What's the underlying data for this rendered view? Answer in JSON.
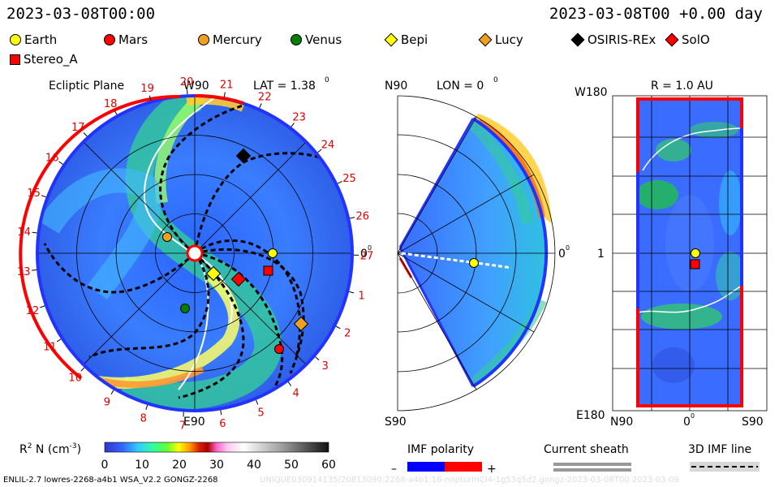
{
  "header": {
    "left": "2023-03-08T00:00",
    "right": "2023-03-08T00 +0.00 day"
  },
  "legend": [
    {
      "label": "Earth",
      "shape": "circle",
      "color": "#ffff00"
    },
    {
      "label": "Mars",
      "shape": "circle",
      "color": "#ff0000"
    },
    {
      "label": "Mercury",
      "shape": "circle",
      "color": "#f0a020"
    },
    {
      "label": "Venus",
      "shape": "circle",
      "color": "#008000"
    },
    {
      "label": "Bepi",
      "shape": "diamond",
      "color": "#ffff00"
    },
    {
      "label": "Lucy",
      "shape": "diamond",
      "color": "#f0a020"
    },
    {
      "label": "OSIRIS-REx",
      "shape": "diamond",
      "color": "#000000"
    },
    {
      "label": "SolO",
      "shape": "diamond",
      "color": "#ff0000"
    },
    {
      "label": "Stereo_A",
      "shape": "square",
      "color": "#ff0000"
    }
  ],
  "ecliptic": {
    "title": "Ecliptic Plane",
    "lat_label": "LAT = 1.38",
    "lat_deg": "0",
    "top_label": "W90",
    "bottom_label": "E90",
    "right_label": "0",
    "right_deg": "0",
    "carrington_ticks": [
      "1",
      "2",
      "3",
      "4",
      "5",
      "6",
      "7",
      "8",
      "9",
      "10",
      "11",
      "12",
      "13",
      "14",
      "15",
      "16",
      "17",
      "18",
      "19",
      "20",
      "21",
      "22",
      "23",
      "24",
      "25",
      "26",
      "27"
    ]
  },
  "meridional": {
    "top_label": "N90",
    "bottom_label": "S90",
    "lon_label": "LON = 0",
    "lon_deg": "0",
    "right_label": "0",
    "right_deg": "0"
  },
  "radial": {
    "title": "R = 1.0 AU",
    "top_left": "W180",
    "bottom_left": "E180",
    "mid_left": "1",
    "bottom_ticks": [
      "N90",
      "0",
      "S90"
    ],
    "mid_deg": "0"
  },
  "colorbar": {
    "label": "R",
    "label_sup": "2",
    "label_rest": " N (cm",
    "label_sup2": "-3",
    "label_end": ")",
    "ticks": [
      "0",
      "10",
      "20",
      "30",
      "40",
      "50",
      "60"
    ],
    "min": 0,
    "max": 60
  },
  "imf": {
    "title": "IMF polarity",
    "minus": "–",
    "plus": "+"
  },
  "sheath": {
    "title": "Current sheath"
  },
  "imfline": {
    "title": "3D IMF line"
  },
  "footer": "ENLIL-2.7 lowres-2268-a4b1 WSA_V2.2 GONGZ-2268",
  "footer_ghost": "UNIQUE030914135/20813090:2268-a4b1:16-nopturmCl4-1g53q5d2.gongz-2023-03-08T00   2023-03-09",
  "colors": {
    "background": "#ffffff",
    "tick_red": "#e00000",
    "imf_neg": "#0000ff",
    "imf_pos": "#ff0000"
  }
}
